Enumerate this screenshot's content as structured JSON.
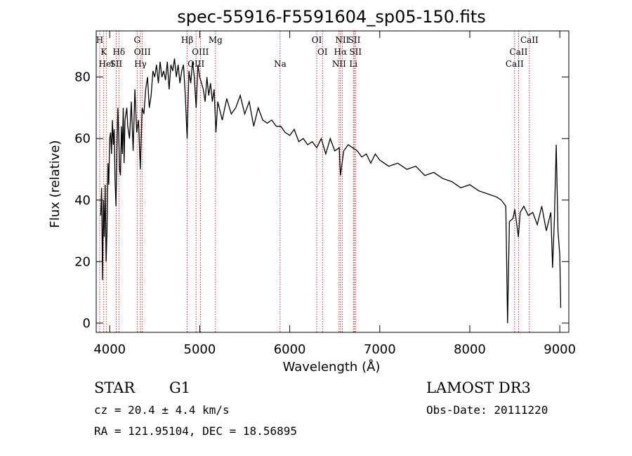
{
  "chart_data": {
    "type": "line",
    "title": "spec-55916-F5591604_sp05-150.fits",
    "xlabel": "Wavelength (Å)",
    "ylabel": "Flux (relative)",
    "xlim": [
      3850,
      9100
    ],
    "ylim": [
      -3,
      95
    ],
    "xticks": [
      4000,
      5000,
      6000,
      7000,
      8000,
      9000
    ],
    "yticks": [
      0,
      20,
      40,
      60,
      80
    ],
    "series": [
      {
        "name": "flux",
        "x": [
          3900,
          3910,
          3920,
          3930,
          3940,
          3950,
          3960,
          3970,
          3980,
          3990,
          4000,
          4010,
          4020,
          4030,
          4040,
          4050,
          4060,
          4070,
          4080,
          4090,
          4100,
          4110,
          4120,
          4130,
          4140,
          4150,
          4160,
          4170,
          4180,
          4190,
          4200,
          4220,
          4240,
          4260,
          4280,
          4300,
          4320,
          4340,
          4360,
          4380,
          4400,
          4420,
          4440,
          4460,
          4480,
          4500,
          4520,
          4540,
          4560,
          4580,
          4600,
          4620,
          4640,
          4660,
          4680,
          4700,
          4720,
          4740,
          4760,
          4780,
          4800,
          4820,
          4840,
          4860,
          4880,
          4900,
          4920,
          4940,
          4960,
          4980,
          5000,
          5020,
          5040,
          5060,
          5080,
          5100,
          5120,
          5140,
          5160,
          5180,
          5200,
          5250,
          5300,
          5350,
          5400,
          5450,
          5500,
          5550,
          5600,
          5650,
          5700,
          5750,
          5800,
          5850,
          5900,
          5950,
          6000,
          6050,
          6100,
          6150,
          6200,
          6250,
          6300,
          6350,
          6400,
          6450,
          6500,
          6550,
          6563,
          6600,
          6650,
          6700,
          6750,
          6800,
          6850,
          6900,
          6950,
          7000,
          7100,
          7200,
          7300,
          7400,
          7500,
          7600,
          7700,
          7800,
          7900,
          8000,
          8100,
          8200,
          8300,
          8350,
          8400,
          8420,
          8440,
          8480,
          8500,
          8540,
          8560,
          8600,
          8650,
          8700,
          8750,
          8800,
          8850,
          8900,
          8920,
          8940,
          8960,
          8980,
          9000,
          9010
        ],
        "values": [
          35,
          44,
          14,
          40,
          28,
          45,
          20,
          30,
          52,
          45,
          60,
          62,
          55,
          66,
          58,
          63,
          46,
          38,
          56,
          70,
          62,
          50,
          48,
          64,
          55,
          70,
          52,
          66,
          68,
          70,
          64,
          60,
          72,
          56,
          76,
          62,
          66,
          50,
          70,
          68,
          76,
          80,
          70,
          74,
          82,
          80,
          84,
          78,
          85,
          80,
          82,
          79,
          85,
          76,
          84,
          82,
          86,
          80,
          84,
          78,
          82,
          84,
          74,
          60,
          82,
          78,
          85,
          80,
          70,
          84,
          80,
          78,
          76,
          72,
          80,
          74,
          78,
          72,
          76,
          62,
          72,
          66,
          73,
          68,
          70,
          74,
          68,
          72,
          64,
          70,
          66,
          65,
          66,
          64,
          64,
          62,
          61,
          63,
          59,
          60,
          58,
          59,
          57,
          60,
          55,
          60,
          56,
          57,
          48,
          56,
          58,
          57,
          56,
          54,
          55,
          52,
          55,
          53,
          51,
          52,
          50,
          51,
          48,
          49,
          47,
          46,
          44,
          45,
          43,
          42,
          41,
          40,
          38,
          0,
          33,
          34,
          37,
          28,
          36,
          38,
          35,
          36,
          32,
          38,
          30,
          36,
          18,
          34,
          58,
          30,
          22,
          5
        ]
      }
    ],
    "lines": [
      {
        "label": "H",
        "wave": 3889,
        "row": 1
      },
      {
        "label": "K",
        "wave": 3934,
        "row": 2
      },
      {
        "label": "HeI",
        "wave": 3965,
        "row": 3
      },
      {
        "label": "SII",
        "wave": 4072,
        "row": 3
      },
      {
        "label": "Hδ",
        "wave": 4102,
        "row": 2
      },
      {
        "label": "G",
        "wave": 4305,
        "row": 1
      },
      {
        "label": "OIII",
        "wave": 4363,
        "row": 2
      },
      {
        "label": "Hγ",
        "wave": 4341,
        "row": 3
      },
      {
        "label": "Hβ",
        "wave": 4861,
        "row": 1
      },
      {
        "label": "OIII",
        "wave": 4959,
        "row": 3
      },
      {
        "label": "OIII",
        "wave": 5007,
        "row": 2
      },
      {
        "label": "Mg",
        "wave": 5175,
        "row": 1
      },
      {
        "label": "Na",
        "wave": 5893,
        "row": 3
      },
      {
        "label": "OI",
        "wave": 6300,
        "row": 1
      },
      {
        "label": "OI",
        "wave": 6364,
        "row": 2
      },
      {
        "label": "NII",
        "wave": 6548,
        "row": 3
      },
      {
        "label": "NII",
        "wave": 6583,
        "row": 1
      },
      {
        "label": "Hα",
        "wave": 6563,
        "row": 2
      },
      {
        "label": "SII",
        "wave": 6717,
        "row": 1
      },
      {
        "label": "SII",
        "wave": 6731,
        "row": 2
      },
      {
        "label": "Li",
        "wave": 6707,
        "row": 3
      },
      {
        "label": "CaII",
        "wave": 8498,
        "row": 3
      },
      {
        "label": "CaII",
        "wave": 8542,
        "row": 2
      },
      {
        "label": "CaII",
        "wave": 8662,
        "row": 1
      }
    ],
    "line_color": "#cc0000"
  },
  "info": {
    "class": "STAR",
    "subclass": "G1",
    "survey": "LAMOST DR3",
    "cz": "cz = 20.4 ± 4.4 km/s",
    "obs_date": "Obs-Date: 20111220",
    "coords": "RA = 121.95104, DEC =  18.56895"
  }
}
